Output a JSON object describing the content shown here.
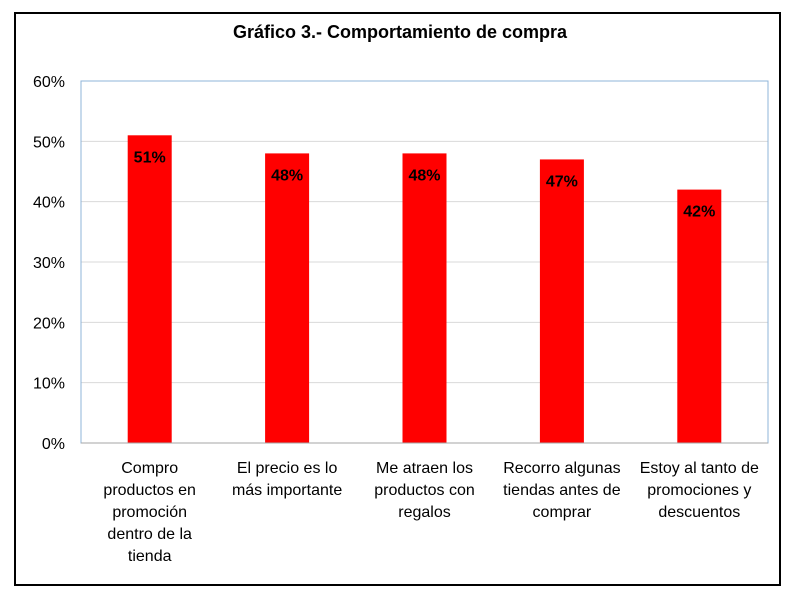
{
  "chart_data": {
    "type": "bar",
    "title": "Gráfico 3.- Comportamiento  de compra",
    "categories": [
      [
        "Compro",
        "productos en",
        "promoción",
        "dentro de la",
        "tienda"
      ],
      [
        "El precio es lo",
        "más importante"
      ],
      [
        "Me atraen los",
        "productos con",
        "regalos"
      ],
      [
        "Recorro algunas",
        "tiendas antes de",
        "comprar"
      ],
      [
        "Estoy al tanto de",
        "promociones y",
        "descuentos"
      ]
    ],
    "values": [
      51,
      48,
      48,
      47,
      42
    ],
    "data_labels": [
      "51%",
      "48%",
      "48%",
      "47%",
      "42%"
    ],
    "y_ticks": [
      "0%",
      "10%",
      "20%",
      "30%",
      "40%",
      "50%",
      "60%"
    ],
    "ylim": [
      0,
      60
    ],
    "grid": true,
    "bar_color": "#ff0000",
    "grid_color": "#d9d9d9",
    "axis_color": "#8fb4d9"
  }
}
